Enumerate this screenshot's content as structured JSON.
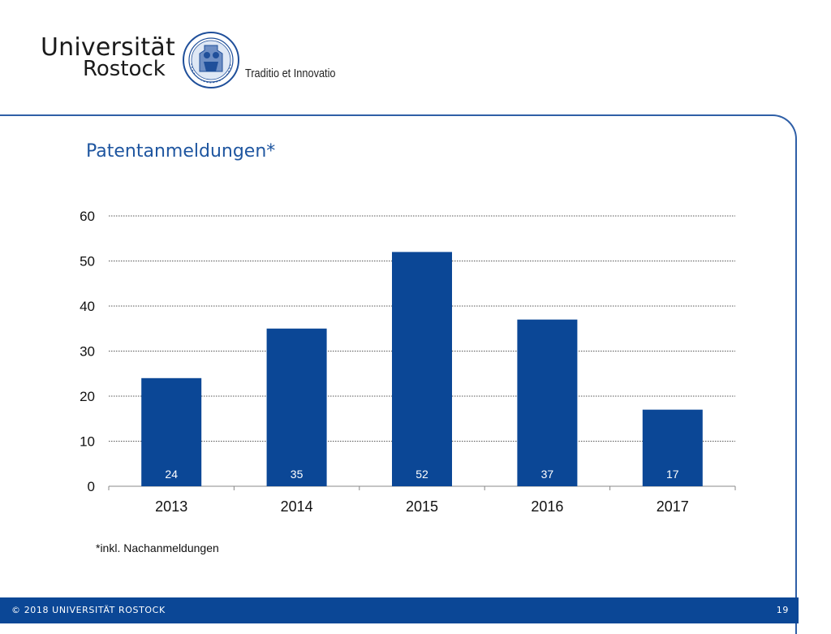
{
  "header": {
    "logo_line1": "Universität",
    "logo_line2": "Rostock",
    "motto": "Traditio et Innovatio",
    "seal_icon": "university-seal-icon"
  },
  "slide": {
    "title": "Patentanmeldungen*",
    "footnote": "*inkl. Nachanmeldungen"
  },
  "footer": {
    "copyright": "©  2018  UNIVERSITÄT ROSTOCK",
    "page_number": "19"
  },
  "colors": {
    "bar": "#0b4796",
    "title": "#1f56a0",
    "frame": "#2f5fa7",
    "footer_bg": "#0b4796"
  },
  "chart_data": {
    "type": "bar",
    "title": "Patentanmeldungen*",
    "categories": [
      "2013",
      "2014",
      "2015",
      "2016",
      "2017"
    ],
    "values": [
      24,
      35,
      52,
      37,
      17
    ],
    "data_labels": [
      "24",
      "35",
      "52",
      "37",
      "17"
    ],
    "yticks": [
      "0",
      "10",
      "20",
      "30",
      "40",
      "50",
      "60"
    ],
    "ylim": [
      0,
      60
    ],
    "grid": true,
    "legend": "none"
  }
}
